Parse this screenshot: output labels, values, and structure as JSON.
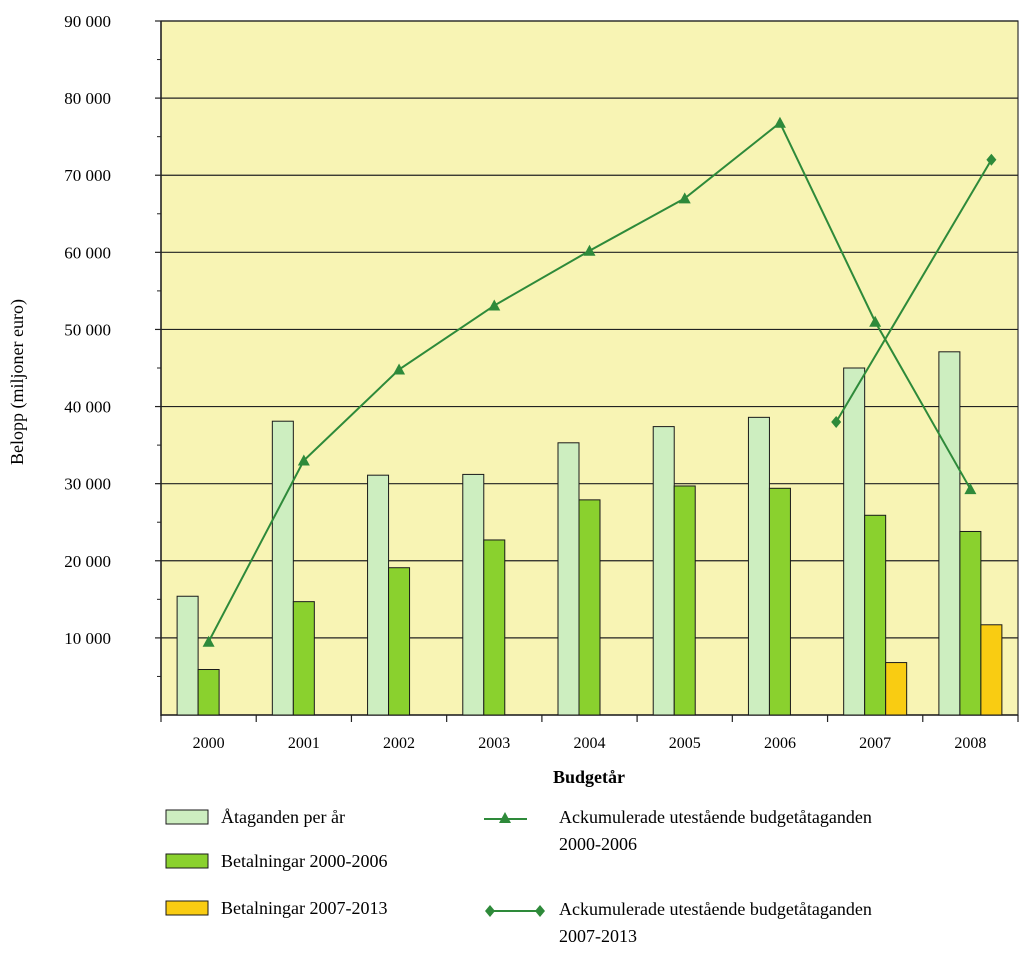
{
  "chart_data": {
    "type": "bar",
    "title": "",
    "xlabel": "Budgetår",
    "ylabel": "Belopp (miljoner euro)",
    "ylim": [
      0,
      90000
    ],
    "yticks": [
      10000,
      20000,
      30000,
      40000,
      50000,
      60000,
      70000,
      80000,
      90000
    ],
    "ytick_labels": [
      "10 000",
      "20 000",
      "30 000",
      "40 000",
      "50 000",
      "60 000",
      "70 000",
      "80 000",
      "90 000"
    ],
    "categories": [
      "2000",
      "2001",
      "2002",
      "2003",
      "2004",
      "2005",
      "2006",
      "2007",
      "2008"
    ],
    "grid": "horizontal",
    "legend_position": "bottom",
    "plot_background": "#f8f4b4",
    "series": [
      {
        "name": "Åtaganden per år",
        "kind": "bar",
        "color": "#cdeec0",
        "values": [
          15400,
          38100,
          31100,
          31200,
          35300,
          37400,
          38600,
          45000,
          47100
        ]
      },
      {
        "name": "Betalningar 2000-2006",
        "kind": "bar",
        "color": "#8ad12e",
        "values": [
          5900,
          14700,
          19100,
          22700,
          27900,
          29700,
          29400,
          25900,
          23800
        ]
      },
      {
        "name": "Betalningar 2007-2013",
        "kind": "bar",
        "color": "#f9cc12",
        "values": [
          null,
          null,
          null,
          null,
          null,
          null,
          null,
          6800,
          11700
        ]
      },
      {
        "name": "Ackumulerade utestående budgetåtaganden 2000-2006",
        "kind": "line",
        "marker": "triangle",
        "color": "#2e8a3a",
        "values": [
          9500,
          33000,
          44800,
          53100,
          60200,
          67000,
          76800,
          51000,
          29300
        ]
      },
      {
        "name": "Ackumulerade utestående budgetåtaganden 2007-2013",
        "kind": "line",
        "marker": "diamond",
        "color": "#2e8a3a",
        "points": [
          {
            "x": "2007",
            "y": 38000
          },
          {
            "x": "2008",
            "y": 72000
          }
        ]
      }
    ],
    "legend": [
      {
        "label": "Åtaganden per år",
        "symbol": "box",
        "color": "#cdeec0"
      },
      {
        "label": "Betalningar 2000-2006",
        "symbol": "box",
        "color": "#8ad12e"
      },
      {
        "label": "Betalningar 2007-2013",
        "symbol": "box",
        "color": "#f9cc12"
      },
      {
        "label_lines": [
          "Ackumulerade utestående budgetåtaganden",
          "2000-2006"
        ],
        "symbol": "triangle-line",
        "color": "#2e8a3a"
      },
      {
        "label_lines": [
          "Ackumulerade utestående budgetåtaganden",
          "2007-2013"
        ],
        "symbol": "diamond-line",
        "color": "#2e8a3a"
      }
    ]
  }
}
